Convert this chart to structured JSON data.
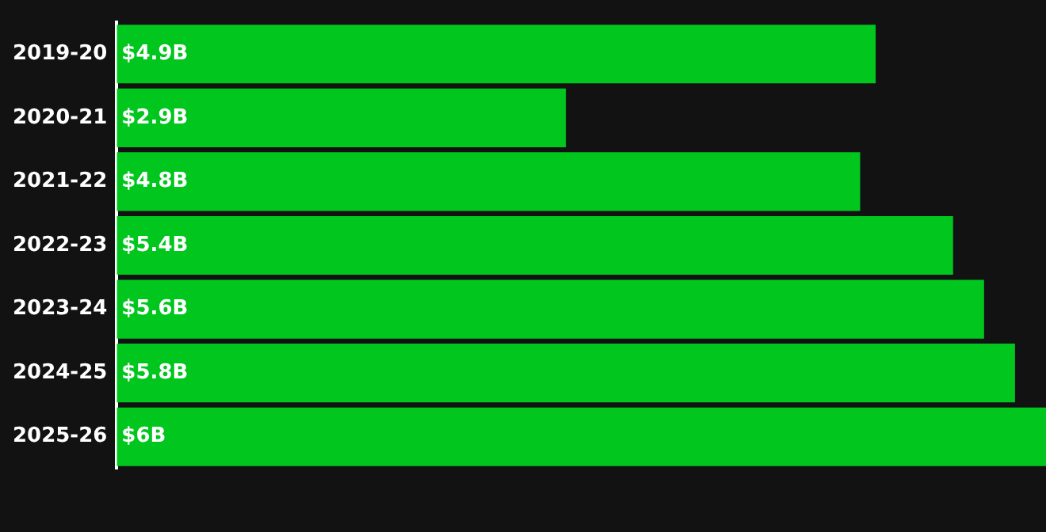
{
  "chart_data": {
    "type": "bar",
    "orientation": "horizontal",
    "categories": [
      "2019-20",
      "2020-21",
      "2021-22",
      "2022-23",
      "2023-24",
      "2024-25",
      "2025-26"
    ],
    "series": [
      {
        "color": "#00c61e",
        "values": [
          4.9,
          2.9,
          4.8,
          5.4,
          5.6,
          5.8,
          6
        ],
        "value_labels": [
          "$4.9B",
          "$2.9B",
          "$4.8B",
          "$5.4B",
          "$5.6B",
          "$5.8B",
          "$6B"
        ]
      }
    ],
    "legend": false
  }
}
